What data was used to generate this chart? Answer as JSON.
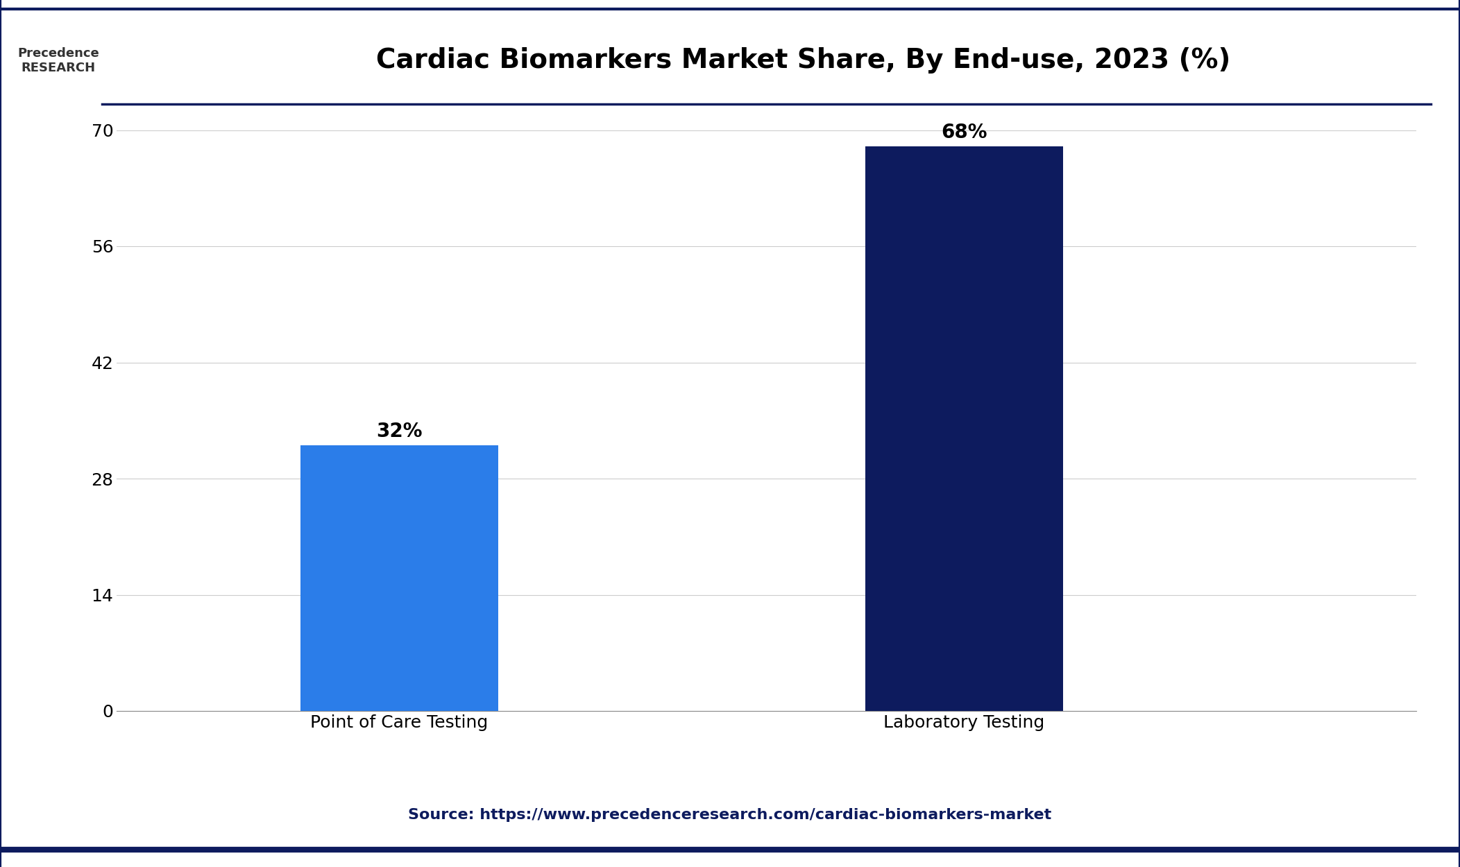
{
  "title": "Cardiac Biomarkers Market Share, By End-use, 2023 (%)",
  "categories": [
    "Point of Care Testing",
    "Laboratory Testing"
  ],
  "values": [
    32,
    68
  ],
  "labels": [
    "32%",
    "68%"
  ],
  "bar_colors": [
    "#2b7de9",
    "#0d1b5e"
  ],
  "ylim": [
    0,
    70
  ],
  "yticks": [
    0,
    14,
    28,
    42,
    56,
    70
  ],
  "source_text": "Source: https://www.precedenceresearch.com/cardiac-biomarkers-market",
  "background_color": "#ffffff",
  "title_fontsize": 28,
  "tick_fontsize": 18,
  "label_fontsize": 20,
  "source_fontsize": 16,
  "bar_width": 0.35,
  "border_color": "#0d1b5e"
}
